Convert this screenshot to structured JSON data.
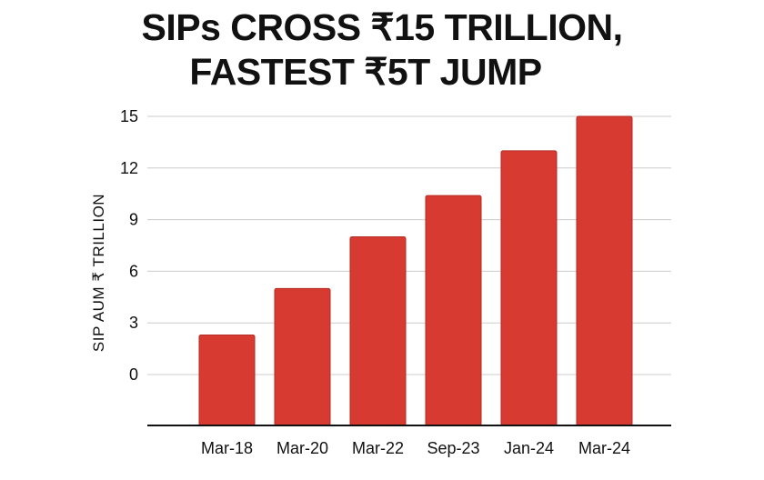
{
  "title_lines": [
    "SIPs CROSS ₹15 TRILLION,",
    "FASTEST ₹5T JUMP"
  ],
  "colors": {
    "bar": "#d63a30",
    "bar_edge": "#b52a22",
    "grid": "#cccccc",
    "axis": "#111111",
    "text": "#111111"
  },
  "chart_data": {
    "type": "bar",
    "title": "SIPs CROSS ₹15 TRILLION, FASTEST ₹5T JUMP",
    "categories": [
      "Mar-18",
      "Mar-20",
      "Mar-22",
      "Sep-23",
      "Jan-24",
      "Mar-24"
    ],
    "values": [
      2.3,
      5.0,
      8.0,
      10.4,
      13.0,
      15.0
    ],
    "xlabel": "",
    "ylabel": "SIP AUM ₹ TRILLION",
    "yticks": [
      0,
      3,
      6,
      9,
      12,
      15
    ],
    "ylim": [
      0,
      15
    ],
    "grid": true,
    "legend": "none"
  }
}
